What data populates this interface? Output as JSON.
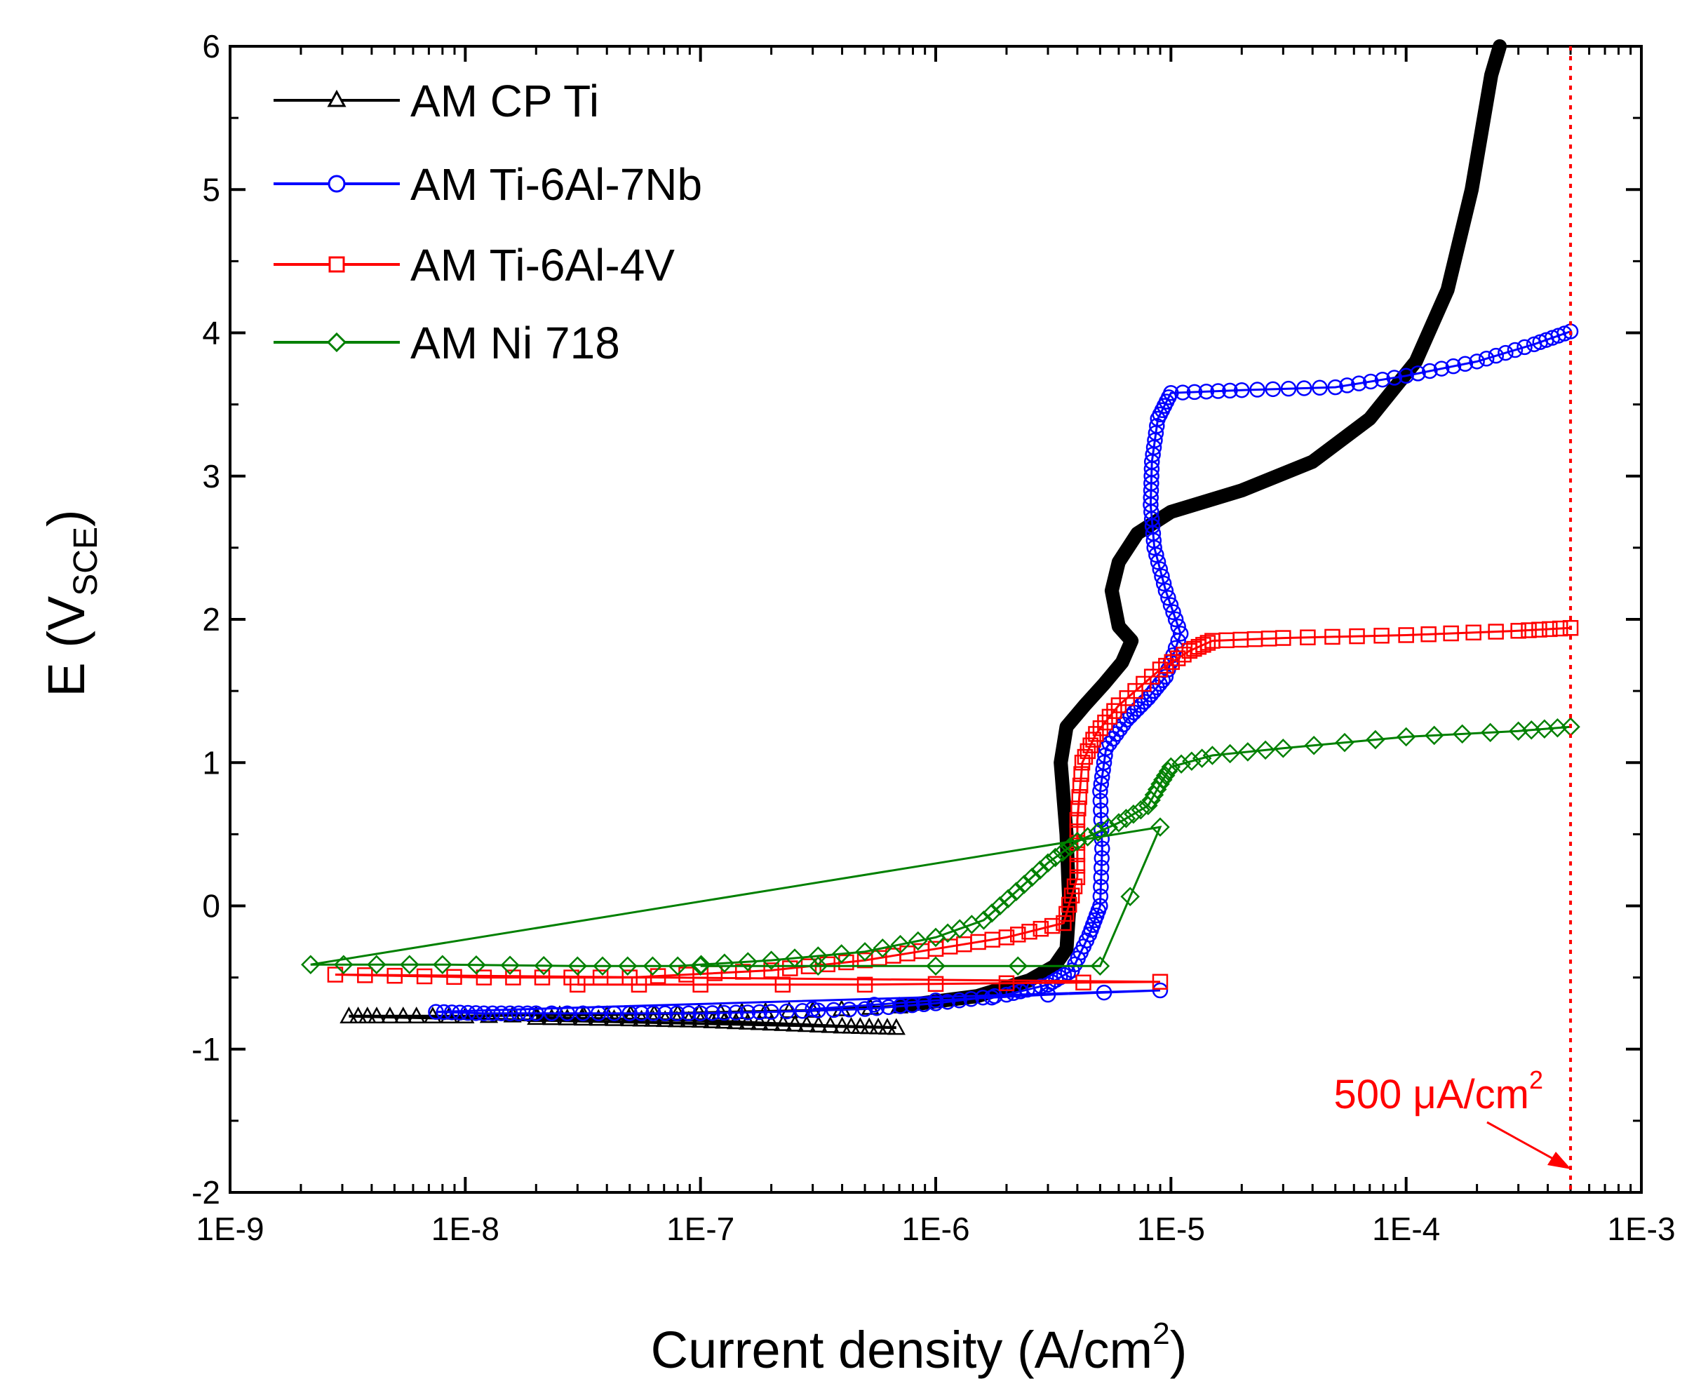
{
  "chart_data": {
    "type": "scatter",
    "title": "",
    "xlabel": "Current density (A/cm²)",
    "xlabel_main": "Current density (A/cm",
    "xlabel_sup": "2",
    "xlabel_close": ")",
    "ylabel": "E (VSCE)",
    "ylabel_main": "E (V",
    "ylabel_sub": "SCE",
    "ylabel_close": ")",
    "xscale": "log",
    "xlim": [
      1e-09,
      0.001
    ],
    "ylim": [
      -2,
      6
    ],
    "x_tick_labels": [
      "1E-9",
      "1E-8",
      "1E-7",
      "1E-6",
      "1E-5",
      "1E-4",
      "1E-3"
    ],
    "y_tick_labels": [
      "-2",
      "-1",
      "0",
      "1",
      "2",
      "3",
      "4",
      "5",
      "6"
    ],
    "legend_position": "top-left",
    "annotation": {
      "text_main": "500 μA/cm",
      "text_sup": "2",
      "x_value": 0.0005,
      "color": "#ff0000"
    },
    "series": [
      {
        "name": "AM CP Ti",
        "color": "#000000",
        "marker": "triangle",
        "points": [
          [
            3.2e-09,
            -0.77
          ],
          [
            4.2e-09,
            -0.77
          ],
          [
            6.2e-09,
            -0.77
          ],
          [
            1e-08,
            -0.77
          ],
          [
            2e-08,
            -0.76
          ],
          [
            4e-08,
            -0.76
          ],
          [
            8e-08,
            -0.75
          ],
          [
            1.5e-07,
            -0.74
          ],
          [
            3e-07,
            -0.73
          ],
          [
            7e-07,
            -0.7
          ],
          [
            1.5e-06,
            -0.63
          ],
          [
            2.5e-06,
            -0.52
          ],
          [
            3.2e-06,
            -0.42
          ],
          [
            3.6e-06,
            -0.3
          ],
          [
            3.7e-06,
            0.0
          ],
          [
            3.6e-06,
            0.5
          ],
          [
            3.4e-06,
            1.0
          ],
          [
            3.6e-06,
            1.25
          ],
          [
            4.3e-06,
            1.4
          ],
          [
            5.2e-06,
            1.55
          ],
          [
            6.2e-06,
            1.7
          ],
          [
            6.8e-06,
            1.85
          ],
          [
            6e-06,
            1.95
          ],
          [
            5.6e-06,
            2.2
          ],
          [
            6e-06,
            2.4
          ],
          [
            7.2e-06,
            2.6
          ],
          [
            1e-05,
            2.75
          ],
          [
            2e-05,
            2.9
          ],
          [
            4e-05,
            3.1
          ],
          [
            7e-05,
            3.4
          ],
          [
            0.00011,
            3.8
          ],
          [
            0.00015,
            4.3
          ],
          [
            0.00019,
            5.0
          ],
          [
            0.00023,
            5.8
          ],
          [
            0.00025,
            6.0
          ]
        ],
        "tail": [
          [
            6.8e-07,
            -0.85
          ],
          [
            4e-07,
            -0.84
          ],
          [
            2e-07,
            -0.82
          ],
          [
            1e-07,
            -0.8
          ],
          [
            5e-08,
            -0.79
          ],
          [
            2e-08,
            -0.78
          ]
        ]
      },
      {
        "name": "AM Ti-6Al-7Nb",
        "color": "#0000ff",
        "marker": "circle",
        "points": [
          [
            7.5e-09,
            -0.74
          ],
          [
            1.2e-08,
            -0.75
          ],
          [
            2e-08,
            -0.75
          ],
          [
            5e-08,
            -0.75
          ],
          [
            1e-07,
            -0.75
          ],
          [
            2e-07,
            -0.74
          ],
          [
            5e-07,
            -0.72
          ],
          [
            1e-06,
            -0.68
          ],
          [
            2e-06,
            -0.62
          ],
          [
            3e-06,
            -0.55
          ],
          [
            3.8e-06,
            -0.45
          ],
          [
            4.5e-06,
            -0.2
          ],
          [
            5e-06,
            0.0
          ],
          [
            5.1e-06,
            0.4
          ],
          [
            5e-06,
            0.8
          ],
          [
            5.3e-06,
            1.1
          ],
          [
            6.5e-06,
            1.3
          ],
          [
            8e-06,
            1.45
          ],
          [
            9.5e-06,
            1.6
          ],
          [
            1.1e-05,
            1.9
          ],
          [
            9.5e-06,
            2.2
          ],
          [
            8.5e-06,
            2.5
          ],
          [
            8.2e-06,
            2.8
          ],
          [
            8.3e-06,
            3.1
          ],
          [
            8.8e-06,
            3.4
          ],
          [
            1e-05,
            3.58
          ],
          [
            2e-05,
            3.6
          ],
          [
            5e-05,
            3.62
          ],
          [
            0.0001,
            3.7
          ],
          [
            0.0002,
            3.8
          ],
          [
            0.00035,
            3.92
          ],
          [
            0.0005,
            4.01
          ]
        ],
        "tail": [
          [
            9e-06,
            -0.59
          ],
          [
            3e-06,
            -0.62
          ],
          [
            1e-06,
            -0.66
          ],
          [
            3e-07,
            -0.72
          ]
        ]
      },
      {
        "name": "AM Ti-6Al-4V",
        "color": "#ff0000",
        "marker": "square",
        "points": [
          [
            2.8e-09,
            -0.48
          ],
          [
            1.2e-08,
            -0.5
          ],
          [
            5e-08,
            -0.5
          ],
          [
            2e-07,
            -0.45
          ],
          [
            5e-07,
            -0.38
          ],
          [
            1e-06,
            -0.3
          ],
          [
            2e-06,
            -0.22
          ],
          [
            3.5e-06,
            -0.12
          ],
          [
            4e-06,
            0.2
          ],
          [
            4e-06,
            0.6
          ],
          [
            4.2e-06,
            1.0
          ],
          [
            4.8e-06,
            1.2
          ],
          [
            6e-06,
            1.4
          ],
          [
            9e-06,
            1.65
          ],
          [
            1.2e-05,
            1.78
          ],
          [
            1.5e-05,
            1.85
          ],
          [
            3e-05,
            1.87
          ],
          [
            0.0001,
            1.89
          ],
          [
            0.0003,
            1.92
          ],
          [
            0.0005,
            1.94
          ]
        ],
        "tail": [
          [
            9e-06,
            -0.53
          ],
          [
            2e-06,
            -0.54
          ],
          [
            5e-07,
            -0.55
          ],
          [
            1e-07,
            -0.55
          ],
          [
            3e-08,
            -0.55
          ]
        ]
      },
      {
        "name": "AM Ni 718",
        "color": "#008000",
        "marker": "diamond",
        "points": [
          [
            2.2e-09,
            -0.41
          ],
          [
            8e-09,
            -0.41
          ],
          [
            3e-08,
            -0.42
          ],
          [
            8e-08,
            -0.42
          ],
          [
            2e-07,
            -0.38
          ],
          [
            5e-07,
            -0.32
          ],
          [
            1e-06,
            -0.22
          ],
          [
            1.6e-06,
            -0.1
          ],
          [
            2.2e-06,
            0.1
          ],
          [
            3e-06,
            0.3
          ],
          [
            4e-06,
            0.45
          ],
          [
            6e-06,
            0.58
          ],
          [
            8e-06,
            0.7
          ],
          [
            9e-06,
            0.85
          ],
          [
            1e-05,
            0.97
          ],
          [
            1.5e-05,
            1.05
          ],
          [
            3e-05,
            1.1
          ],
          [
            0.0001,
            1.18
          ],
          [
            0.0003,
            1.22
          ],
          [
            0.0005,
            1.25
          ]
        ],
        "tail": [
          [
            9e-06,
            0.55
          ],
          [
            5e-06,
            -0.42
          ],
          [
            1e-06,
            -0.42
          ],
          [
            1e-07,
            -0.42
          ]
        ]
      }
    ]
  }
}
